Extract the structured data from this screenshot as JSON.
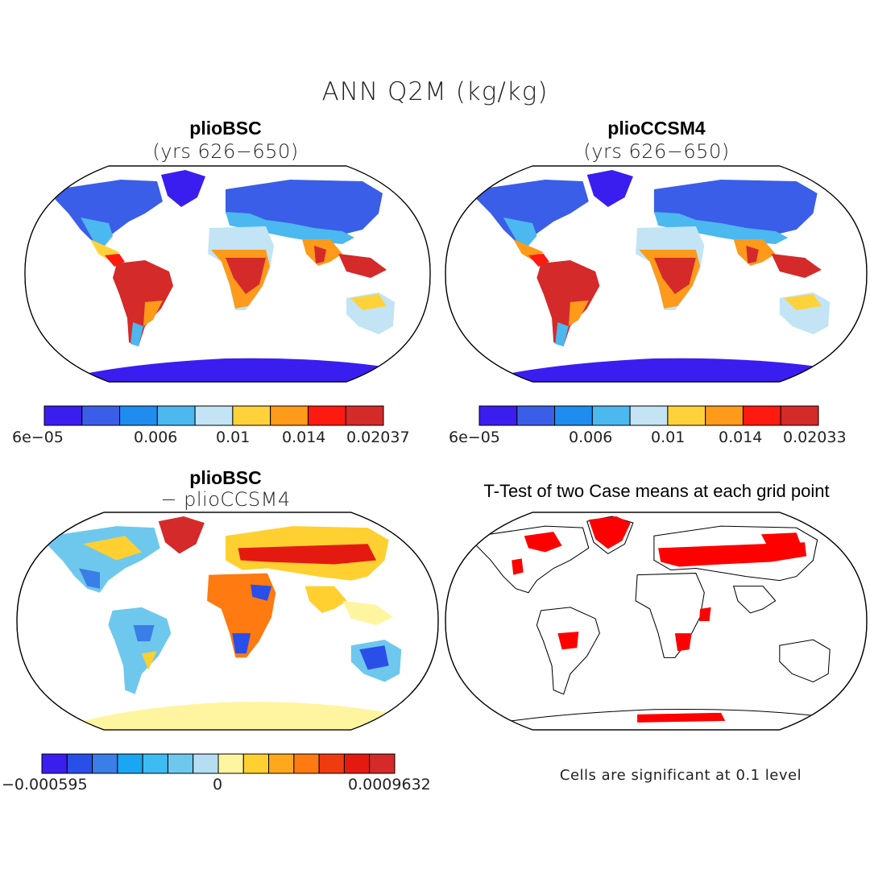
{
  "figure": {
    "title": "ANN Q2M (kg/kg)"
  },
  "panels": {
    "top_left": {
      "title": "plioBSC",
      "subtitle": "(yrs 626−650)",
      "colorbar": {
        "colors": [
          "#3a1ef0",
          "#3a5ee8",
          "#1f8cf0",
          "#4bb8ef",
          "#c2e4f5",
          "#ffd23a",
          "#ff9a1a",
          "#ff1a10",
          "#d42a2a"
        ],
        "labels": [
          "6e−05",
          "0.006",
          "0.01",
          "0.014",
          "0.02037"
        ]
      }
    },
    "top_right": {
      "title": "plioCCSM4",
      "subtitle": "(yrs 626−650)",
      "colorbar": {
        "colors": [
          "#3a1ef0",
          "#3a5ee8",
          "#1f8cf0",
          "#4bb8ef",
          "#c2e4f5",
          "#ffd23a",
          "#ff9a1a",
          "#ff1a10",
          "#d42a2a"
        ],
        "labels": [
          "6e−05",
          "0.006",
          "0.01",
          "0.014",
          "0.02033"
        ]
      }
    },
    "bottom_left": {
      "title": "plioBSC",
      "subtitle": "− plioCCSM4",
      "colorbar": {
        "colors": [
          "#3a1ef0",
          "#2a4ee8",
          "#3a7ee8",
          "#1aa6f2",
          "#3cbcf2",
          "#6ec8ee",
          "#b6def2",
          "#fff5a0",
          "#ffd030",
          "#ffa81e",
          "#ff7a10",
          "#f03a10",
          "#e41a10",
          "#d42a2a"
        ],
        "labels": [
          "−0.000595",
          "0",
          "0.0009632"
        ]
      }
    },
    "bottom_right": {
      "title": "T-Test of two Case means at each grid point",
      "note": "Cells are significant at 0.1 level",
      "significant_color": "#ff0000"
    }
  }
}
